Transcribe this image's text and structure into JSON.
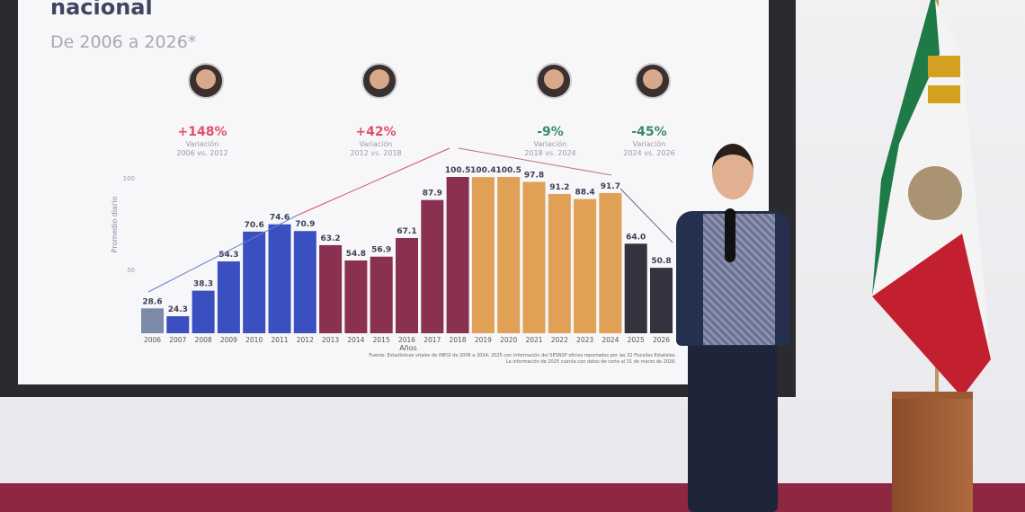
{
  "slide": {
    "title": "nacional",
    "subtitle": "De 2006 a 2026*",
    "source_line1": "Fuente: Estadísticas vitales de INEGI de 2006 a 2024; 2025 con información del SESNSP oficios reportados por las 32 Fiscalías Estatales.",
    "source_line2": "La información de 2025 cuenta con datos de corte al 31 de marzo de 2026."
  },
  "annotations": [
    {
      "pct": "+148%",
      "label": "Variación",
      "range": "2006 vs. 2012",
      "color": "#e0506a"
    },
    {
      "pct": "+42%",
      "label": "Variación",
      "range": "2012 vs. 2018",
      "color": "#e0506a"
    },
    {
      "pct": "-9%",
      "label": "Variación",
      "range": "2018 vs. 2024",
      "color": "#3a8a6a"
    },
    {
      "pct": "-45%",
      "label": "Variación",
      "range": "2024 vs.  2026",
      "color": "#3a8a6a"
    }
  ],
  "chart_data": {
    "type": "bar",
    "xlabel": "Años",
    "ylabel": "Promedio diario",
    "ylim": [
      15,
      100.5
    ],
    "yticks": [
      50,
      100
    ],
    "grid": false,
    "categories": [
      "2006",
      "2007",
      "2008",
      "2009",
      "2010",
      "2011",
      "2012",
      "2013",
      "2014",
      "2015",
      "2016",
      "2017",
      "2018",
      "2019",
      "2020",
      "2021",
      "2022",
      "2023",
      "2024",
      "2025",
      "2026"
    ],
    "values": [
      28.6,
      24.3,
      38.3,
      54.3,
      70.6,
      74.6,
      70.9,
      63.2,
      54.8,
      56.9,
      67.1,
      87.9,
      100.5,
      100.4,
      100.5,
      97.8,
      91.2,
      88.4,
      91.7,
      64.0,
      50.8
    ],
    "labels": [
      "28.6",
      "24.3",
      "38.3",
      "54.3",
      "70.6",
      "74.6",
      "70.9",
      "63.2",
      "54.8",
      "56.9",
      "67.1",
      "87.9",
      "100.5",
      "100.4",
      "100.5",
      "97.8",
      "91.2",
      "88.4",
      "91.7",
      "64.0",
      "50.8"
    ],
    "colors": [
      "#7b8aa8",
      "#3a4fc0",
      "#3a4fc0",
      "#3a4fc0",
      "#3a4fc0",
      "#3a4fc0",
      "#3a4fc0",
      "#8a3050",
      "#8a3050",
      "#8a3050",
      "#8a3050",
      "#8a3050",
      "#8a3050",
      "#e0a055",
      "#e0a055",
      "#e0a055",
      "#e0a055",
      "#e0a055",
      "#e0a055",
      "#33333f",
      "#33333f"
    ]
  }
}
